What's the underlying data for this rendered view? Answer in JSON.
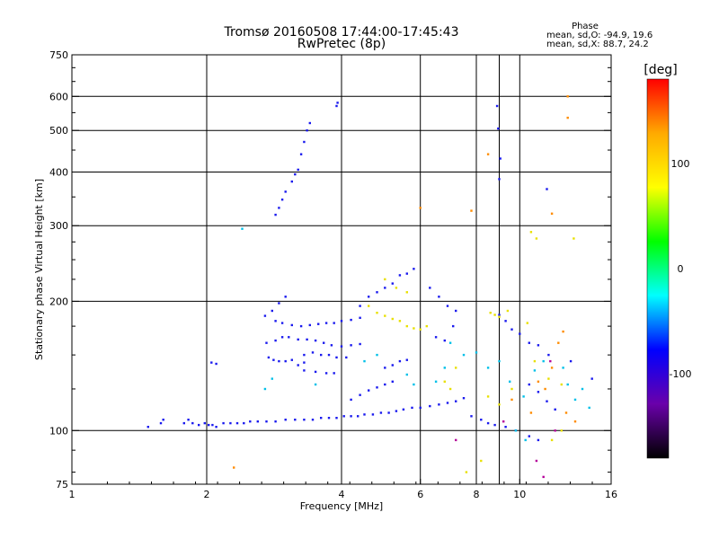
{
  "chart_data": {
    "type": "scatter",
    "title": "Tromsø 20160508 17:44:00-17:45:43",
    "subtitle": "RwPretec (8p)",
    "xlabel": "Frequency [MHz]",
    "ylabel": "Stationary phase Virtual Height [km]",
    "x_scale": "log2",
    "y_scale": "log",
    "xlim": [
      1,
      16
    ],
    "ylim": [
      75,
      750
    ],
    "x_ticks": [
      1,
      2,
      4,
      6,
      8,
      10,
      16
    ],
    "y_ticks": [
      75,
      100,
      200,
      300,
      400,
      500,
      600,
      750
    ],
    "x_gridlines": [
      2,
      4,
      6,
      8,
      9,
      10,
      16
    ],
    "y_gridlines": [
      100,
      200,
      300,
      400,
      500,
      600
    ],
    "grid": true,
    "stats": {
      "heading": "Phase",
      "line_o": "mean, sd,O: -94.9, 19.6",
      "line_x": "mean, sd,X:  88.7, 24.2"
    },
    "colorbar": {
      "label": "[deg]",
      "range": [
        -180,
        180
      ],
      "ticks": [
        100,
        0,
        -100
      ],
      "colors": [
        "#ff0000",
        "#ffaa00",
        "#ffff00",
        "#00ff00",
        "#00ffff",
        "#0000ff",
        "#6a00aa",
        "#000000"
      ]
    },
    "series": [
      {
        "color": "#1a1aee",
        "points": [
          [
            1.48,
            102
          ],
          [
            1.58,
            104
          ],
          [
            1.6,
            106
          ],
          [
            1.78,
            104
          ],
          [
            1.82,
            106
          ],
          [
            1.86,
            104
          ],
          [
            1.92,
            103
          ],
          [
            1.98,
            104
          ],
          [
            2.02,
            103
          ],
          [
            2.06,
            103
          ],
          [
            2.1,
            102
          ],
          [
            2.18,
            104
          ],
          [
            2.26,
            104
          ],
          [
            2.34,
            104
          ],
          [
            2.42,
            104
          ],
          [
            2.5,
            105
          ],
          [
            2.6,
            105
          ],
          [
            2.72,
            105
          ],
          [
            2.85,
            105
          ],
          [
            3.0,
            106
          ],
          [
            3.15,
            106
          ],
          [
            3.3,
            106
          ],
          [
            3.45,
            106
          ],
          [
            3.6,
            107
          ],
          [
            3.75,
            107
          ],
          [
            3.9,
            107
          ],
          [
            4.05,
            108
          ],
          [
            4.2,
            108
          ],
          [
            4.35,
            108
          ],
          [
            4.5,
            109
          ],
          [
            4.7,
            109
          ],
          [
            4.9,
            110
          ],
          [
            5.1,
            110
          ],
          [
            5.3,
            111
          ],
          [
            5.5,
            112
          ],
          [
            5.75,
            113
          ],
          [
            6.0,
            113
          ],
          [
            6.3,
            114
          ],
          [
            6.6,
            115
          ],
          [
            6.9,
            116
          ],
          [
            7.2,
            117
          ],
          [
            7.5,
            119
          ],
          [
            2.05,
            144
          ],
          [
            2.1,
            143
          ],
          [
            2.75,
            148
          ],
          [
            2.82,
            146
          ],
          [
            2.9,
            145
          ],
          [
            3.0,
            145
          ],
          [
            3.1,
            146
          ],
          [
            3.2,
            142
          ],
          [
            3.3,
            144
          ],
          [
            2.72,
            160
          ],
          [
            2.85,
            162
          ],
          [
            2.95,
            165
          ],
          [
            3.05,
            165
          ],
          [
            3.2,
            163
          ],
          [
            3.35,
            163
          ],
          [
            3.5,
            162
          ],
          [
            3.65,
            160
          ],
          [
            3.8,
            158
          ],
          [
            4.0,
            157
          ],
          [
            4.2,
            158
          ],
          [
            4.4,
            159
          ],
          [
            2.85,
            180
          ],
          [
            2.95,
            178
          ],
          [
            3.1,
            176
          ],
          [
            3.25,
            175
          ],
          [
            3.4,
            176
          ],
          [
            3.55,
            177
          ],
          [
            3.7,
            178
          ],
          [
            3.85,
            178
          ],
          [
            4.0,
            180
          ],
          [
            4.2,
            181
          ],
          [
            4.4,
            183
          ],
          [
            3.3,
            150
          ],
          [
            3.45,
            152
          ],
          [
            3.6,
            150
          ],
          [
            3.75,
            150
          ],
          [
            3.9,
            148
          ],
          [
            4.1,
            148
          ],
          [
            3.3,
            138
          ],
          [
            3.5,
            137
          ],
          [
            3.7,
            136
          ],
          [
            3.85,
            136
          ],
          [
            2.7,
            185
          ],
          [
            2.8,
            190
          ],
          [
            2.9,
            198
          ],
          [
            3.0,
            205
          ],
          [
            4.4,
            195
          ],
          [
            4.6,
            205
          ],
          [
            4.8,
            210
          ],
          [
            5.0,
            215
          ],
          [
            5.2,
            220
          ],
          [
            5.4,
            230
          ],
          [
            5.6,
            232
          ],
          [
            5.8,
            238
          ],
          [
            4.2,
            118
          ],
          [
            4.4,
            121
          ],
          [
            4.6,
            124
          ],
          [
            4.8,
            126
          ],
          [
            5.0,
            128
          ],
          [
            5.2,
            130
          ],
          [
            5.0,
            140
          ],
          [
            5.2,
            142
          ],
          [
            5.4,
            145
          ],
          [
            5.6,
            146
          ],
          [
            6.3,
            215
          ],
          [
            6.6,
            205
          ],
          [
            6.9,
            195
          ],
          [
            7.2,
            190
          ],
          [
            6.5,
            165
          ],
          [
            6.8,
            162
          ],
          [
            7.1,
            175
          ],
          [
            2.85,
            318
          ],
          [
            2.9,
            330
          ],
          [
            2.95,
            345
          ],
          [
            3.0,
            360
          ],
          [
            3.1,
            380
          ],
          [
            3.15,
            395
          ],
          [
            3.2,
            405
          ],
          [
            3.25,
            440
          ],
          [
            3.3,
            470
          ],
          [
            3.35,
            500
          ],
          [
            3.4,
            520
          ],
          [
            3.9,
            570
          ],
          [
            3.92,
            580
          ],
          [
            8.9,
            570
          ],
          [
            8.95,
            505
          ],
          [
            9.0,
            385
          ],
          [
            9.05,
            430
          ],
          [
            11.5,
            365
          ],
          [
            9.0,
            186
          ],
          [
            9.3,
            180
          ],
          [
            9.6,
            172
          ],
          [
            10.0,
            168
          ],
          [
            10.5,
            160
          ],
          [
            11.0,
            158
          ],
          [
            11.6,
            150
          ],
          [
            10.5,
            128
          ],
          [
            11.0,
            123
          ],
          [
            11.5,
            117
          ],
          [
            12.0,
            112
          ],
          [
            13.0,
            145
          ],
          [
            14.5,
            132
          ],
          [
            7.8,
            108
          ],
          [
            8.2,
            106
          ],
          [
            8.5,
            104
          ],
          [
            8.8,
            103
          ],
          [
            9.3,
            102
          ],
          [
            9.8,
            100
          ],
          [
            10.5,
            97
          ],
          [
            11.0,
            95
          ]
        ]
      },
      {
        "color": "#00c0e8",
        "points": [
          [
            2.4,
            295
          ],
          [
            2.7,
            125
          ],
          [
            2.8,
            132
          ],
          [
            3.5,
            128
          ],
          [
            4.5,
            145
          ],
          [
            4.8,
            150
          ],
          [
            5.6,
            135
          ],
          [
            5.8,
            128
          ],
          [
            6.5,
            130
          ],
          [
            6.8,
            140
          ],
          [
            7.0,
            160
          ],
          [
            7.5,
            150
          ],
          [
            8.0,
            152
          ],
          [
            8.5,
            140
          ],
          [
            9.0,
            145
          ],
          [
            9.5,
            130
          ],
          [
            10.2,
            120
          ],
          [
            10.8,
            138
          ],
          [
            11.3,
            145
          ],
          [
            12.5,
            140
          ],
          [
            12.8,
            128
          ],
          [
            13.3,
            118
          ],
          [
            13.8,
            125
          ],
          [
            14.3,
            113
          ],
          [
            9.8,
            100
          ],
          [
            10.3,
            95
          ]
        ]
      },
      {
        "color": "#e8e000",
        "points": [
          [
            4.6,
            195
          ],
          [
            4.8,
            188
          ],
          [
            5.0,
            185
          ],
          [
            5.2,
            182
          ],
          [
            5.4,
            180
          ],
          [
            5.6,
            175
          ],
          [
            5.8,
            173
          ],
          [
            6.0,
            172
          ],
          [
            6.2,
            175
          ],
          [
            5.0,
            225
          ],
          [
            5.3,
            215
          ],
          [
            5.6,
            210
          ],
          [
            8.6,
            188
          ],
          [
            8.8,
            186
          ],
          [
            9.0,
            184
          ],
          [
            9.4,
            190
          ],
          [
            10.4,
            178
          ],
          [
            6.8,
            130
          ],
          [
            7.0,
            125
          ],
          [
            7.2,
            140
          ],
          [
            8.5,
            120
          ],
          [
            9.0,
            115
          ],
          [
            9.6,
            125
          ],
          [
            10.8,
            145
          ],
          [
            11.6,
            132
          ],
          [
            12.4,
            128
          ],
          [
            7.6,
            80
          ],
          [
            8.2,
            85
          ],
          [
            11.8,
            95
          ],
          [
            12.4,
            100
          ],
          [
            10.6,
            290
          ],
          [
            10.9,
            280
          ],
          [
            13.2,
            280
          ]
        ]
      },
      {
        "color": "#ff8c00",
        "points": [
          [
            7.8,
            325
          ],
          [
            10.6,
            110
          ],
          [
            11.0,
            130
          ],
          [
            11.4,
            125
          ],
          [
            11.8,
            140
          ],
          [
            12.2,
            160
          ],
          [
            12.7,
            110
          ],
          [
            13.3,
            105
          ],
          [
            9.6,
            118
          ],
          [
            12.8,
            535
          ],
          [
            12.8,
            600
          ],
          [
            8.5,
            440
          ],
          [
            2.3,
            82
          ],
          [
            6.0,
            330
          ],
          [
            11.8,
            320
          ],
          [
            12.5,
            170
          ]
        ]
      },
      {
        "color": "#b5009a",
        "points": [
          [
            9.2,
            105
          ],
          [
            11.7,
            145
          ],
          [
            10.9,
            85
          ],
          [
            11.3,
            78
          ],
          [
            12.0,
            100
          ],
          [
            7.2,
            95
          ]
        ]
      }
    ]
  }
}
